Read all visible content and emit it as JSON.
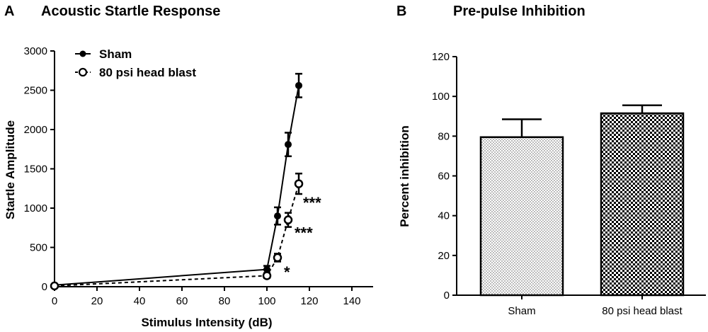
{
  "panels": {
    "a_letter": "A",
    "b_letter": "B"
  },
  "chart_data": [
    {
      "type": "line",
      "title": "Acoustic Startle Response",
      "xlabel": "Stimulus Intensity (dB)",
      "ylabel": "Startle Amplitude",
      "xlim": [
        0,
        150
      ],
      "ylim": [
        0,
        3000
      ],
      "xticks": [
        0,
        20,
        40,
        60,
        80,
        100,
        120,
        140
      ],
      "yticks": [
        0,
        500,
        1000,
        1500,
        2000,
        2500,
        3000
      ],
      "legend_position": "top-left",
      "series": [
        {
          "name": "Sham",
          "style": "solid-line-filled-marker",
          "x": [
            0,
            100,
            105,
            110,
            115
          ],
          "values": [
            20,
            220,
            900,
            1810,
            2560
          ],
          "errors": [
            10,
            45,
            110,
            150,
            150
          ]
        },
        {
          "name": "80 psi head blast",
          "style": "dashed-line-open-marker",
          "x": [
            0,
            100,
            105,
            110,
            115
          ],
          "values": [
            10,
            140,
            370,
            850,
            1310
          ],
          "errors": [
            10,
            30,
            50,
            90,
            130
          ]
        }
      ],
      "annotations": [
        {
          "text": "*",
          "x": 108,
          "y": 190
        },
        {
          "text": "***",
          "x": 113,
          "y": 690
        },
        {
          "text": "***",
          "x": 117,
          "y": 1070
        }
      ]
    },
    {
      "type": "bar",
      "title": "Pre-pulse Inhibition",
      "xlabel": "",
      "ylabel": "Percent inhibition",
      "ylim": [
        0,
        120
      ],
      "yticks": [
        0,
        20,
        40,
        60,
        80,
        100,
        120
      ],
      "categories": [
        "Sham",
        "80 psi head blast"
      ],
      "values": [
        79.5,
        91.5
      ],
      "errors": [
        9.0,
        4.0
      ],
      "patterns": [
        "dots",
        "checker"
      ]
    }
  ]
}
